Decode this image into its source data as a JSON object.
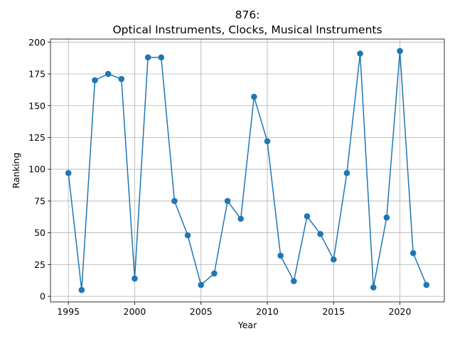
{
  "chart_data": {
    "type": "line",
    "title_line1": "876:",
    "title_line2": "Optical Instruments, Clocks, Musical Instruments",
    "xlabel": "Year",
    "ylabel": "Ranking",
    "xlim": [
      1993.65,
      2023.35
    ],
    "ylim": [
      -4.4,
      202.4
    ],
    "xticks": [
      1995,
      2000,
      2005,
      2010,
      2015,
      2020
    ],
    "yticks": [
      0,
      25,
      50,
      75,
      100,
      125,
      150,
      175,
      200
    ],
    "grid": true,
    "series_color": "#1f77b4",
    "x": [
      1995,
      1996,
      1997,
      1998,
      1999,
      2000,
      2001,
      2002,
      2003,
      2004,
      2005,
      2006,
      2007,
      2008,
      2009,
      2010,
      2011,
      2012,
      2013,
      2014,
      2015,
      2016,
      2017,
      2018,
      2019,
      2020,
      2021,
      2022
    ],
    "y": [
      97,
      5,
      170,
      175,
      171,
      14,
      188,
      188,
      75,
      48,
      9,
      18,
      75,
      61,
      157,
      122,
      32,
      12,
      63,
      49,
      29,
      97,
      191,
      7,
      62,
      193,
      34,
      9
    ]
  }
}
